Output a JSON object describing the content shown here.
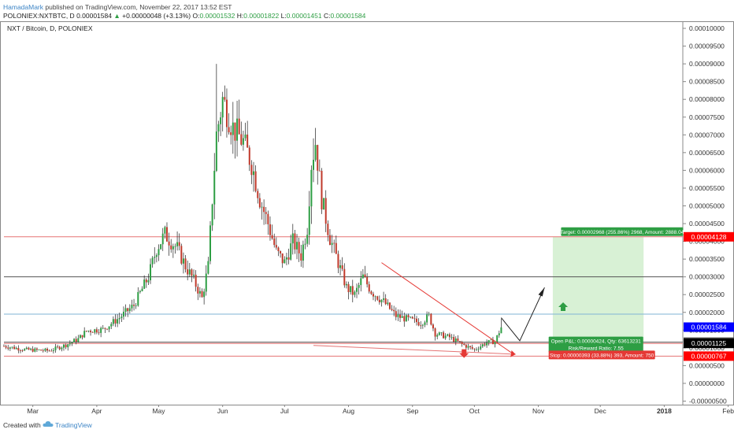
{
  "header": {
    "author": "HamadaMark",
    "published": "published on TradingView.com, November 22, 2017 13:52 EST",
    "symbol": "POLONIEX:NXTBTC, D",
    "last": "0.00001584",
    "change_arrow": "▲",
    "change": "+0.00000048 (+3.13%)",
    "o_label": "O:",
    "o": "0.00001532",
    "h_label": "H:",
    "h": "0.00001822",
    "l_label": "L:",
    "l": "0.00001451",
    "c_label": "C:",
    "c": "0.00001584"
  },
  "footer": {
    "created_with": "Created with",
    "brand": "TradingView",
    "logo_icon": "tradingview-cloud-icon"
  },
  "colors": {
    "up": "#2e9e44",
    "down": "#c0392b",
    "blue_price": "#0000ff",
    "red_price": "#ff0000",
    "black_price": "#000000",
    "target_zone": "#d4efd0",
    "stop_zone": "#f6d5d5"
  },
  "chart_data": {
    "type": "candlestick",
    "title": "NXT / Bitcoin, D, POLONIEX",
    "x_ticks": [
      "Mar",
      "Apr",
      "May",
      "Jun",
      "Jul",
      "Aug",
      "Sep",
      "Oct",
      "Nov",
      "Dec",
      "2018",
      "Feb",
      "Ma"
    ],
    "y_ticks": [
      "0.00010000",
      "0.00009500",
      "0.00009000",
      "0.00008500",
      "0.00008000",
      "0.00007500",
      "0.00007000",
      "0.00006500",
      "0.00006000",
      "0.00005500",
      "0.00005000",
      "0.00004500",
      "0.00004000",
      "0.00003500",
      "0.00003000",
      "0.00002500",
      "0.00002000",
      "0.00001500",
      "0.00001000",
      "0.00000500",
      "0.00000000",
      "-0.00000500"
    ],
    "ylim": [
      -6e-06,
      0.000102
    ],
    "price_path": [
      [
        0,
        1.05e-05
      ],
      [
        10,
        9.5e-06
      ],
      [
        22,
        9.2e-06
      ],
      [
        30,
        1.08e-05
      ],
      [
        36,
        1.25e-05
      ],
      [
        40,
        1.48e-05
      ],
      [
        48,
        1.52e-05
      ],
      [
        56,
        1.85e-05
      ],
      [
        63,
        2.2e-05
      ],
      [
        70,
        3e-05
      ],
      [
        74,
        3.8e-05
      ],
      [
        78,
        4.2e-05
      ],
      [
        84,
        3.8e-05
      ],
      [
        88,
        3.3e-05
      ],
      [
        92,
        2.9e-05
      ],
      [
        96,
        2.4e-05
      ],
      [
        99,
        3.3e-05
      ],
      [
        101,
        5.2e-05
      ],
      [
        103,
        7e-05
      ],
      [
        106,
        8e-05
      ],
      [
        111,
        7.2e-05
      ],
      [
        116,
        6.8e-05
      ],
      [
        120,
        6.2e-05
      ],
      [
        124,
        5.2e-05
      ],
      [
        128,
        4.5e-05
      ],
      [
        132,
        3.7e-05
      ],
      [
        136,
        3.4e-05
      ],
      [
        140,
        4e-05
      ],
      [
        144,
        3.6e-05
      ],
      [
        147,
        4.4e-05
      ],
      [
        149,
        6.2e-05
      ],
      [
        151,
        6.8e-05
      ],
      [
        154,
        5.2e-05
      ],
      [
        158,
        4.1e-05
      ],
      [
        162,
        3.4e-05
      ],
      [
        166,
        2.7e-05
      ],
      [
        170,
        2.5e-05
      ],
      [
        174,
        3e-05
      ],
      [
        178,
        2.6e-05
      ],
      [
        184,
        2.3e-05
      ],
      [
        190,
        1.9e-05
      ],
      [
        196,
        1.8e-05
      ],
      [
        202,
        1.7e-05
      ],
      [
        206,
        1.9e-05
      ],
      [
        209,
        1.4e-05
      ],
      [
        216,
        1.3e-05
      ],
      [
        222,
        1.1e-05
      ],
      [
        228,
        9.5e-06
      ],
      [
        234,
        1.15e-05
      ],
      [
        238,
        1.18e-05
      ],
      [
        241,
        1.58e-05
      ]
    ],
    "start_date": "2017-02-15",
    "levels": [
      {
        "price": 4.128e-05,
        "label": "0.00004128",
        "color": "#ff0000",
        "line": "#e57373"
      },
      {
        "price": 3e-05,
        "label": "",
        "color": "",
        "line": "#555555"
      },
      {
        "price": 1.95e-05,
        "label": "",
        "color": "",
        "line": "#7fb3d5"
      },
      {
        "price": 1.584e-05,
        "label": "0.00001584",
        "color": "#0000ff",
        "line": ""
      },
      {
        "price": 1.16e-05,
        "label": "0.00001160",
        "color": "#444444",
        "line": "#555555"
      },
      {
        "price": 1.125e-05,
        "label": "0.00001125",
        "color": "#000000",
        "line": "#e57373"
      },
      {
        "price": 7.67e-06,
        "label": "0.00000767",
        "color": "#ff0000",
        "line": "#e57373"
      }
    ],
    "position": {
      "type": "long",
      "entry": 1.16e-05,
      "target": 4.128e-05,
      "stop": 7.67e-06,
      "target_text": "Target: 0.00002968 (255.86%) 2968, Amount: 2888.04",
      "open_text": "Open P&L: 0.00000424, Qty: 63613231",
      "rr_text": "Risk/Reward Ratio: 7.55",
      "stop_text": "Stop: 0.00000393 (33.88%) 393, Amount: 750"
    },
    "trendline": {
      "from": [
        183,
        3.4e-05
      ],
      "to": [
        247,
        8.2e-06
      ]
    },
    "arrow_up_icon": "green-up-arrow-icon",
    "arrow_down_icon": "red-down-arrow-icon"
  }
}
